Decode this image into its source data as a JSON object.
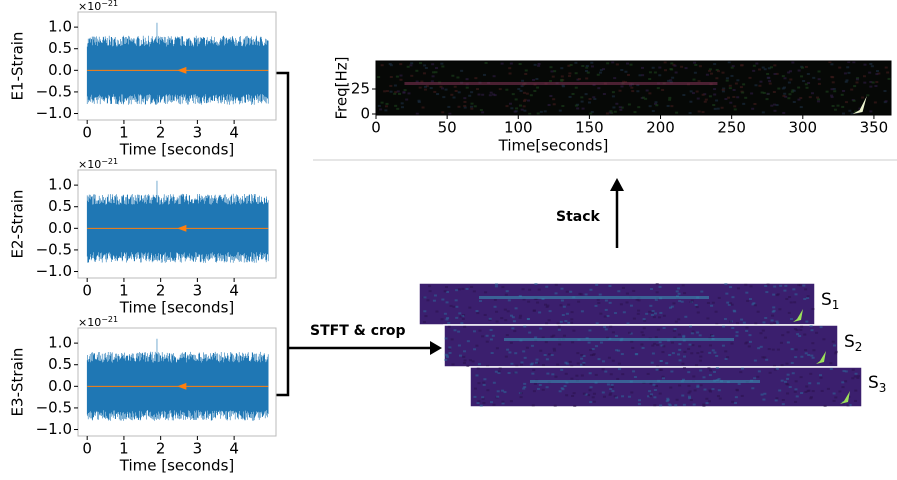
{
  "strain_panels": [
    {
      "ylabel": "E1-Strain",
      "xlabel": "Time [seconds]",
      "multiplier": {
        "base": "×10",
        "exponent": "−21"
      },
      "xlim": [
        -0.25,
        5.14
      ],
      "xticks": [
        0,
        1,
        2,
        3,
        4
      ],
      "ylim": [
        -1.15,
        1.35
      ],
      "yticks": [
        {
          "value": -1,
          "label": "−1.0"
        },
        {
          "value": -0.5,
          "label": "−0.5"
        },
        {
          "value": 0,
          "label": "0.0"
        },
        {
          "value": 0.5,
          "label": "0.5"
        },
        {
          "value": 1,
          "label": "1.0"
        }
      ]
    },
    {
      "ylabel": "E2-Strain",
      "xlabel": "Time [seconds]",
      "multiplier": {
        "base": "×10",
        "exponent": "−21"
      },
      "xlim": [
        -0.25,
        5.14
      ],
      "xticks": [
        0,
        1,
        2,
        3,
        4
      ],
      "ylim": [
        -1.15,
        1.35
      ],
      "yticks": [
        {
          "value": -1,
          "label": "−1.0"
        },
        {
          "value": -0.5,
          "label": "−0.5"
        },
        {
          "value": 0,
          "label": "0.0"
        },
        {
          "value": 0.5,
          "label": "0.5"
        },
        {
          "value": 1,
          "label": "1.0"
        }
      ]
    },
    {
      "ylabel": "E3-Strain",
      "xlabel": "Time [seconds]",
      "multiplier": {
        "base": "×10",
        "exponent": "−21"
      },
      "xlim": [
        -0.25,
        5.14
      ],
      "xticks": [
        0,
        1,
        2,
        3,
        4
      ],
      "ylim": [
        -1.15,
        1.35
      ],
      "yticks": [
        {
          "value": -1,
          "label": "−1.0"
        },
        {
          "value": -0.5,
          "label": "−0.5"
        },
        {
          "value": 0,
          "label": "0.0"
        },
        {
          "value": 0.5,
          "label": "0.5"
        },
        {
          "value": 1,
          "label": "1.0"
        }
      ]
    }
  ],
  "spectrogram": {
    "xlabel": "Time[seconds]",
    "ylabel": "Freq[Hz]",
    "xlim": [
      0,
      362
    ],
    "xticks": [
      0,
      50,
      100,
      150,
      200,
      250,
      300,
      350
    ],
    "ylim": [
      -1,
      53
    ],
    "yticks": [
      0,
      25
    ]
  },
  "arrows": {
    "stft": "STFT & crop",
    "stack": "Stack"
  },
  "stacked_labels": [
    {
      "base": "S",
      "sub": "1"
    },
    {
      "base": "S",
      "sub": "2"
    },
    {
      "base": "S",
      "sub": "3"
    }
  ]
}
